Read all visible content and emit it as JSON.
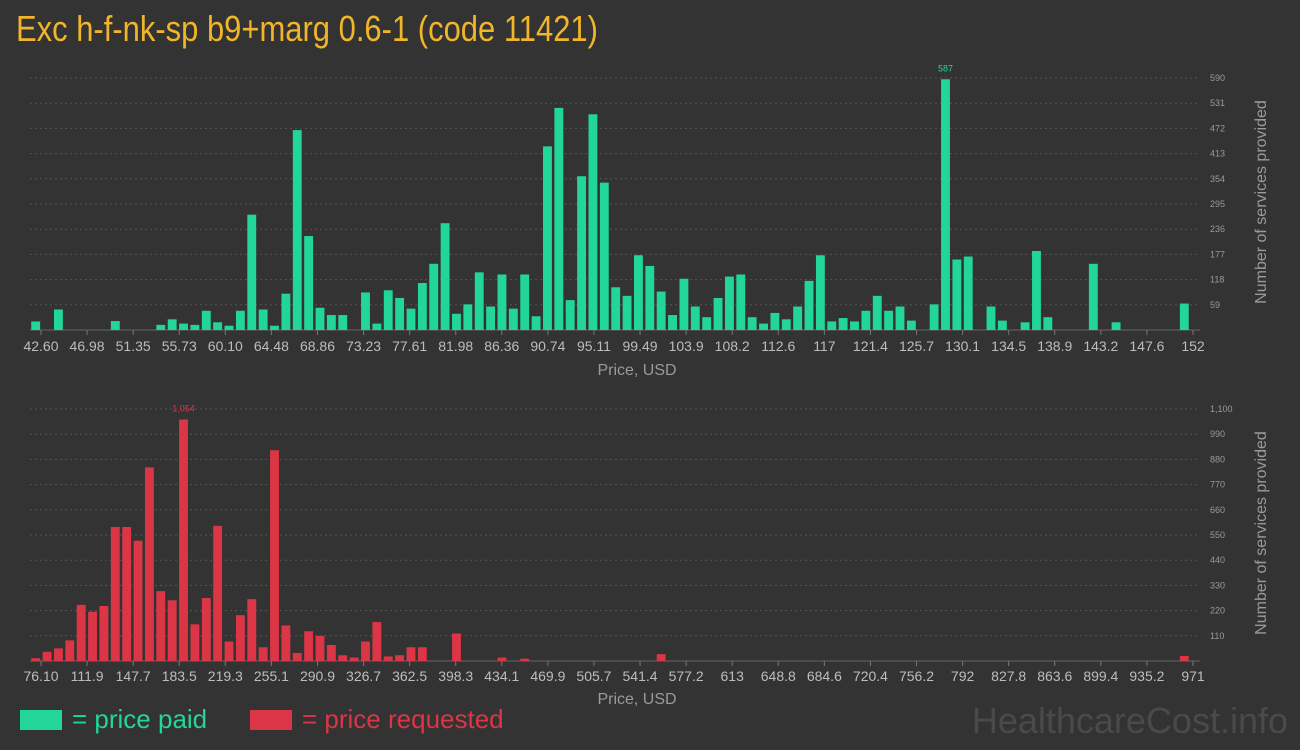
{
  "title": "Exc h-f-nk-sp b9+marg 0.6-1 (code 11421)",
  "legend": {
    "paid_label": "= price paid",
    "requested_label": "= price requested",
    "paid_color": "#22d69a",
    "requested_color": "#dc3545"
  },
  "watermark": "HealthcareCost.info",
  "chart_data": [
    {
      "type": "bar",
      "name": "price paid",
      "color": "#22d69a",
      "xlabel": "Price, USD",
      "ylabel": "Number of services provided",
      "ylim": [
        0,
        590
      ],
      "yticks": [
        "59",
        "118",
        "177",
        "236",
        "295",
        "354",
        "413",
        "472",
        "531",
        "590"
      ],
      "xticks": [
        "42.60",
        "46.98",
        "51.35",
        "55.73",
        "60.10",
        "64.48",
        "68.86",
        "73.23",
        "77.61",
        "81.98",
        "86.36",
        "90.74",
        "95.11",
        "99.49",
        "103.9",
        "108.2",
        "112.6",
        "117",
        "121.4",
        "125.7",
        "130.1",
        "134.5",
        "138.9",
        "143.2",
        "147.6",
        "152"
      ],
      "peak_label": "587",
      "values": [
        20,
        0,
        48,
        0,
        0,
        0,
        0,
        21,
        0,
        0,
        0,
        12,
        25,
        15,
        12,
        45,
        18,
        10,
        45,
        270,
        48,
        10,
        85,
        468,
        220,
        52,
        35,
        35,
        0,
        88,
        15,
        93,
        75,
        50,
        110,
        155,
        250,
        38,
        60,
        135,
        55,
        130,
        50,
        130,
        32,
        430,
        520,
        70,
        360,
        505,
        345,
        100,
        80,
        175,
        150,
        90,
        35,
        120,
        55,
        30,
        75,
        125,
        130,
        30,
        15,
        40,
        25,
        55,
        115,
        175,
        20,
        28,
        20,
        45,
        80,
        45,
        55,
        22,
        0,
        60,
        587,
        165,
        172,
        0,
        55,
        22,
        0,
        18,
        185,
        30,
        0,
        0,
        0,
        155,
        0,
        18,
        0,
        0,
        0,
        0,
        0,
        62
      ]
    },
    {
      "type": "bar",
      "name": "price requested",
      "color": "#dc3545",
      "xlabel": "Price, USD",
      "ylabel": "Number of services provided",
      "ylim": [
        0,
        1100
      ],
      "yticks": [
        "110",
        "220",
        "330",
        "440",
        "550",
        "660",
        "770",
        "880",
        "990",
        "1,100"
      ],
      "xticks": [
        "76.10",
        "111.9",
        "147.7",
        "183.5",
        "219.3",
        "255.1",
        "290.9",
        "326.7",
        "362.5",
        "398.3",
        "434.1",
        "469.9",
        "505.7",
        "541.4",
        "577.2",
        "613",
        "648.8",
        "684.6",
        "720.4",
        "756.2",
        "792",
        "827.8",
        "863.6",
        "899.4",
        "935.2",
        "971"
      ],
      "peak_label": "1,054",
      "values": [
        12,
        40,
        55,
        90,
        245,
        215,
        240,
        585,
        585,
        525,
        845,
        305,
        265,
        1054,
        160,
        275,
        590,
        85,
        200,
        270,
        60,
        920,
        155,
        35,
        130,
        110,
        70,
        25,
        15,
        85,
        170,
        20,
        25,
        60,
        60,
        0,
        0,
        120,
        0,
        0,
        0,
        15,
        0,
        10,
        0,
        0,
        0,
        0,
        0,
        0,
        0,
        0,
        0,
        0,
        0,
        30,
        0,
        0,
        0,
        0,
        0,
        0,
        0,
        0,
        0,
        0,
        0,
        0,
        0,
        0,
        0,
        0,
        0,
        0,
        0,
        0,
        0,
        0,
        0,
        0,
        0,
        0,
        0,
        0,
        0,
        0,
        0,
        0,
        0,
        0,
        0,
        0,
        0,
        0,
        0,
        0,
        0,
        0,
        0,
        0,
        0,
        22
      ]
    }
  ]
}
